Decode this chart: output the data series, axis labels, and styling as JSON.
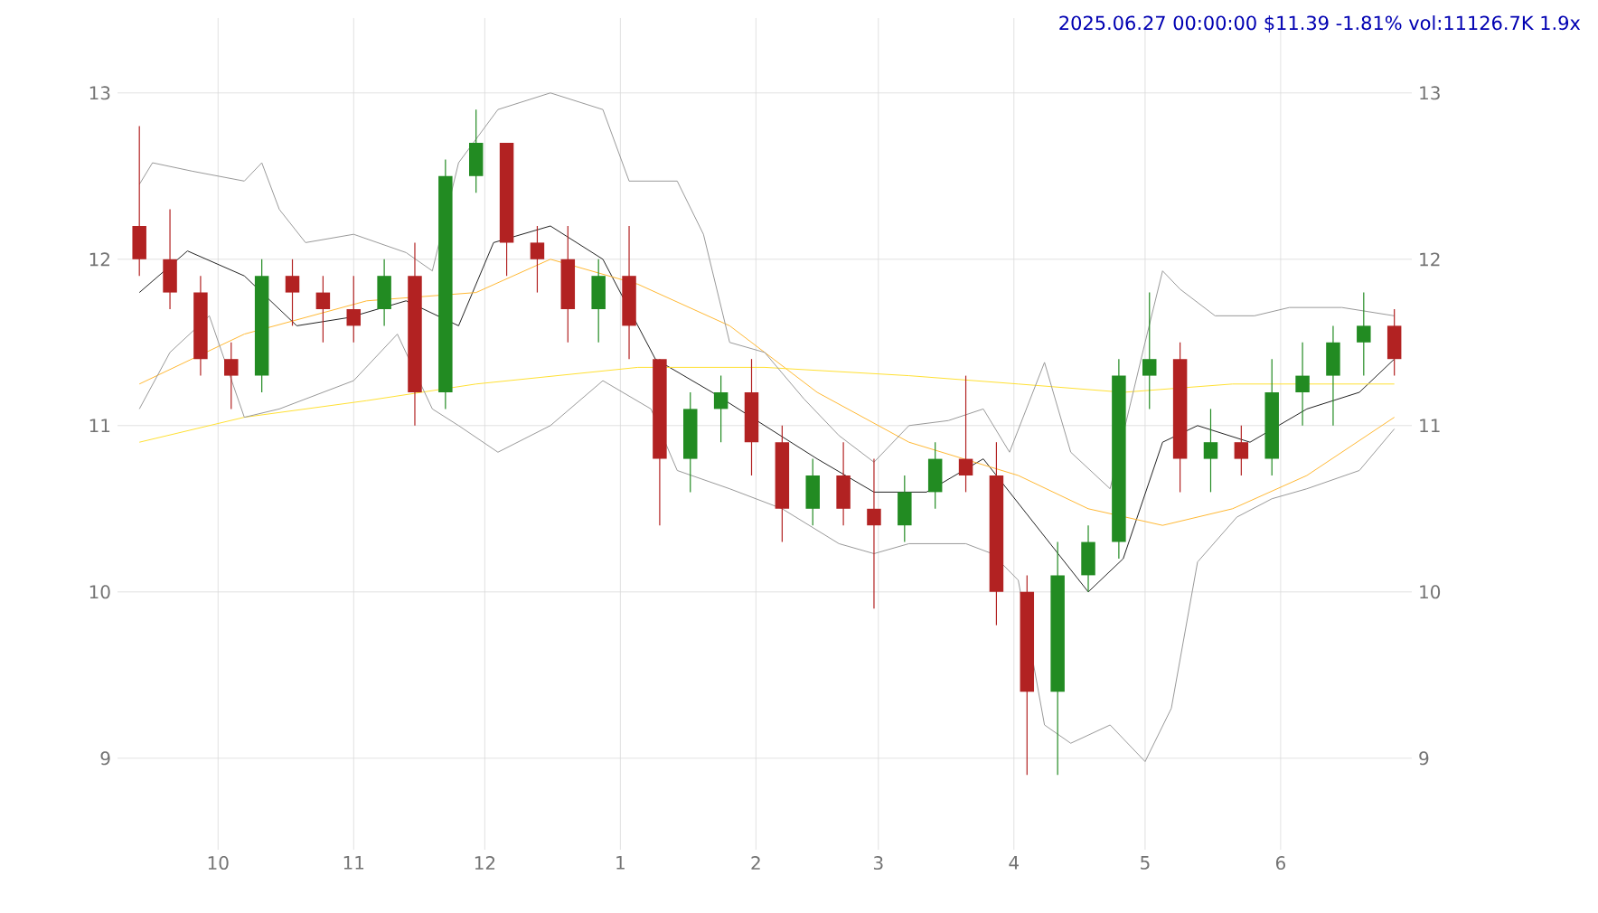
{
  "chart_data": {
    "type": "candlestick",
    "title": "2025.06.27 00:00:00 $11.39 -1.81% vol:11126.7K 1.9x",
    "x": [
      "2024-09-13",
      "2024-09-20",
      "2024-09-27",
      "2024-10-04",
      "2024-10-11",
      "2024-10-18",
      "2024-10-25",
      "2024-11-01",
      "2024-11-08",
      "2024-11-15",
      "2024-11-22",
      "2024-11-29",
      "2024-12-06",
      "2024-12-13",
      "2024-12-20",
      "2024-12-27",
      "2025-01-03",
      "2025-01-10",
      "2025-01-17",
      "2025-01-24",
      "2025-01-31",
      "2025-02-07",
      "2025-02-14",
      "2025-02-21",
      "2025-02-28",
      "2025-03-07",
      "2025-03-14",
      "2025-03-21",
      "2025-03-28",
      "2025-04-04",
      "2025-04-11",
      "2025-04-18",
      "2025-04-25",
      "2025-05-02",
      "2025-05-09",
      "2025-05-16",
      "2025-05-23",
      "2025-05-30",
      "2025-06-06",
      "2025-06-13",
      "2025-06-20",
      "2025-06-27"
    ],
    "ohlc": [
      [
        12.2,
        12.8,
        11.9,
        12.0
      ],
      [
        12.0,
        12.3,
        11.7,
        11.8
      ],
      [
        11.8,
        11.9,
        11.3,
        11.4
      ],
      [
        11.4,
        11.5,
        11.1,
        11.3
      ],
      [
        11.3,
        12.0,
        11.2,
        11.9
      ],
      [
        11.9,
        12.0,
        11.6,
        11.8
      ],
      [
        11.8,
        11.9,
        11.5,
        11.7
      ],
      [
        11.7,
        11.9,
        11.5,
        11.6
      ],
      [
        11.7,
        12.0,
        11.6,
        11.9
      ],
      [
        11.9,
        12.1,
        11.0,
        11.2
      ],
      [
        11.2,
        12.6,
        11.1,
        12.5
      ],
      [
        12.5,
        12.9,
        12.4,
        12.7
      ],
      [
        12.7,
        12.7,
        11.9,
        12.1
      ],
      [
        12.1,
        12.2,
        11.8,
        12.0
      ],
      [
        12.0,
        12.2,
        11.5,
        11.7
      ],
      [
        11.7,
        12.0,
        11.5,
        11.9
      ],
      [
        11.9,
        12.2,
        11.4,
        11.6
      ],
      [
        11.4,
        11.4,
        10.4,
        10.8
      ],
      [
        10.8,
        11.2,
        10.6,
        11.1
      ],
      [
        11.1,
        11.3,
        10.9,
        11.2
      ],
      [
        11.2,
        11.4,
        10.7,
        10.9
      ],
      [
        10.9,
        11.0,
        10.3,
        10.5
      ],
      [
        10.5,
        10.8,
        10.4,
        10.7
      ],
      [
        10.7,
        10.9,
        10.4,
        10.5
      ],
      [
        10.5,
        10.8,
        9.9,
        10.4
      ],
      [
        10.4,
        10.7,
        10.3,
        10.6
      ],
      [
        10.6,
        10.9,
        10.5,
        10.8
      ],
      [
        10.8,
        11.3,
        10.6,
        10.7
      ],
      [
        10.7,
        10.9,
        9.8,
        10.0
      ],
      [
        10.0,
        10.1,
        8.9,
        9.4
      ],
      [
        9.4,
        10.3,
        8.9,
        10.1
      ],
      [
        10.1,
        10.4,
        10.0,
        10.3
      ],
      [
        10.3,
        11.4,
        10.2,
        11.3
      ],
      [
        11.3,
        11.8,
        11.1,
        11.4
      ],
      [
        11.4,
        11.5,
        10.6,
        10.8
      ],
      [
        10.8,
        11.1,
        10.6,
        10.9
      ],
      [
        10.9,
        11.0,
        10.7,
        10.8
      ],
      [
        10.8,
        11.4,
        10.7,
        11.2
      ],
      [
        11.2,
        11.5,
        11.0,
        11.3
      ],
      [
        11.3,
        11.6,
        11.0,
        11.5
      ],
      [
        11.5,
        11.8,
        11.3,
        11.6
      ],
      [
        11.6,
        11.7,
        11.3,
        11.4
      ]
    ],
    "colors": [
      "#b22222",
      "#b22222",
      "#b22222",
      "#b22222",
      "#228b22",
      "#b22222",
      "#b22222",
      "#b22222",
      "#228b22",
      "#b22222",
      "#228b22",
      "#228b22",
      "#b22222",
      "#b22222",
      "#b22222",
      "#228b22",
      "#b22222",
      "#b22222",
      "#228b22",
      "#228b22",
      "#b22222",
      "#b22222",
      "#228b22",
      "#b22222",
      "#b22222",
      "#228b22",
      "#228b22",
      "#b22222",
      "#b22222",
      "#b22222",
      "#228b22",
      "#228b22",
      "#228b22",
      "#228b22",
      "#b22222",
      "#228b22",
      "#b22222",
      "#228b22",
      "#228b22",
      "#228b22",
      "#228b22",
      "#b22222"
    ],
    "series": [
      {
        "type": "line",
        "color": "#222222",
        "x": [
          "2024-09-13",
          "2024-09-24",
          "2024-10-07",
          "2024-10-19",
          "2024-10-31",
          "2024-11-13",
          "2024-11-25",
          "2024-12-03",
          "2024-12-16",
          "2024-12-28",
          "2025-01-09",
          "2025-01-22",
          "2025-02-03",
          "2025-02-15",
          "2025-02-28",
          "2025-03-12",
          "2025-03-25",
          "2025-04-06",
          "2025-04-18",
          "2025-04-26",
          "2025-05-05",
          "2025-05-13",
          "2025-05-25",
          "2025-06-07",
          "2025-06-19",
          "2025-06-27"
        ],
        "values": [
          11.8,
          12.05,
          11.9,
          11.6,
          11.65,
          11.75,
          11.6,
          12.1,
          12.2,
          12.0,
          11.4,
          11.2,
          11.0,
          10.8,
          10.6,
          10.6,
          10.8,
          10.4,
          10.0,
          10.2,
          10.9,
          11.0,
          10.9,
          11.1,
          11.2,
          11.4
        ]
      },
      {
        "type": "line",
        "color": "#ffb833",
        "x": [
          "2024-09-13",
          "2024-10-07",
          "2024-11-04",
          "2024-11-29",
          "2024-12-16",
          "2025-01-05",
          "2025-01-26",
          "2025-02-15",
          "2025-03-08",
          "2025-04-02",
          "2025-04-18",
          "2025-05-05",
          "2025-05-21",
          "2025-06-07",
          "2025-06-27"
        ],
        "values": [
          11.25,
          11.55,
          11.75,
          11.8,
          12.0,
          11.85,
          11.6,
          11.2,
          10.9,
          10.7,
          10.5,
          10.4,
          10.5,
          10.7,
          11.05
        ]
      },
      {
        "type": "line",
        "color": "#ffe033",
        "x": [
          "2024-09-13",
          "2024-10-07",
          "2024-11-04",
          "2024-11-29",
          "2025-01-05",
          "2025-02-03",
          "2025-03-08",
          "2025-04-02",
          "2025-04-26",
          "2025-05-21",
          "2025-06-27"
        ],
        "values": [
          10.9,
          11.05,
          11.15,
          11.25,
          11.35,
          11.35,
          11.3,
          11.25,
          11.2,
          11.25,
          11.25
        ]
      },
      {
        "type": "line",
        "color": "#999999",
        "x": [
          "2024-09-13",
          "2024-09-16",
          "2024-09-25",
          "2024-10-07",
          "2024-10-11",
          "2024-10-15",
          "2024-10-21",
          "2024-11-01",
          "2024-11-13",
          "2024-11-19",
          "2024-11-25",
          "2024-12-04",
          "2024-12-16",
          "2024-12-28",
          "2025-01-03",
          "2025-01-14",
          "2025-01-20",
          "2025-01-26",
          "2025-02-03",
          "2025-02-12",
          "2025-02-20",
          "2025-02-28",
          "2025-03-08",
          "2025-03-17",
          "2025-03-25",
          "2025-03-31",
          "2025-04-08",
          "2025-04-14",
          "2025-04-23",
          "2025-05-01",
          "2025-05-05",
          "2025-05-09",
          "2025-05-17",
          "2025-05-26",
          "2025-06-03",
          "2025-06-15",
          "2025-06-27"
        ],
        "values": [
          12.45,
          12.58,
          12.53,
          12.47,
          12.58,
          12.3,
          12.1,
          12.15,
          12.04,
          11.93,
          12.58,
          12.9,
          13.0,
          12.9,
          12.47,
          12.47,
          12.15,
          11.5,
          11.44,
          11.16,
          10.94,
          10.78,
          11.0,
          11.03,
          11.1,
          10.84,
          11.38,
          10.84,
          10.62,
          11.5,
          11.93,
          11.82,
          11.66,
          11.66,
          11.71,
          11.71,
          11.66
        ]
      },
      {
        "type": "line",
        "color": "#999999",
        "x": [
          "2024-09-13",
          "2024-09-20",
          "2024-09-29",
          "2024-10-07",
          "2024-10-15",
          "2024-11-01",
          "2024-11-11",
          "2024-11-19",
          "2024-11-25",
          "2024-12-04",
          "2024-12-16",
          "2024-12-28",
          "2025-01-08",
          "2025-01-14",
          "2025-01-26",
          "2025-02-07",
          "2025-02-20",
          "2025-02-28",
          "2025-03-08",
          "2025-03-21",
          "2025-03-27",
          "2025-04-02",
          "2025-04-08",
          "2025-04-14",
          "2025-04-23",
          "2025-05-01",
          "2025-05-07",
          "2025-05-13",
          "2025-05-22",
          "2025-05-30",
          "2025-06-07",
          "2025-06-19",
          "2025-06-27"
        ],
        "values": [
          11.1,
          11.44,
          11.66,
          11.05,
          11.1,
          11.27,
          11.55,
          11.1,
          11.0,
          10.84,
          11.0,
          11.27,
          11.1,
          10.73,
          10.62,
          10.5,
          10.29,
          10.23,
          10.29,
          10.29,
          10.23,
          10.07,
          9.2,
          9.09,
          9.2,
          8.98,
          9.3,
          10.18,
          10.45,
          10.56,
          10.62,
          10.73,
          10.98
        ]
      }
    ],
    "xlim": [
      "2024-09-08",
      "2025-07-01"
    ],
    "xticks": [
      {
        "value": "2024-10-01",
        "label": "10"
      },
      {
        "value": "2024-11-01",
        "label": "11"
      },
      {
        "value": "2024-12-01",
        "label": "12"
      },
      {
        "value": "2025-01-01",
        "label": "1"
      },
      {
        "value": "2025-02-01",
        "label": "2"
      },
      {
        "value": "2025-03-01",
        "label": "3"
      },
      {
        "value": "2025-04-01",
        "label": "4"
      },
      {
        "value": "2025-05-01",
        "label": "5"
      },
      {
        "value": "2025-06-01",
        "label": "6"
      }
    ],
    "ylim": [
      8.45,
      13.45
    ],
    "yticks": [
      9,
      10,
      11,
      12,
      13
    ],
    "y2lim": [
      8.45,
      13.45
    ],
    "y2ticks": [
      9,
      10,
      11,
      12,
      13
    ],
    "grid": true
  }
}
